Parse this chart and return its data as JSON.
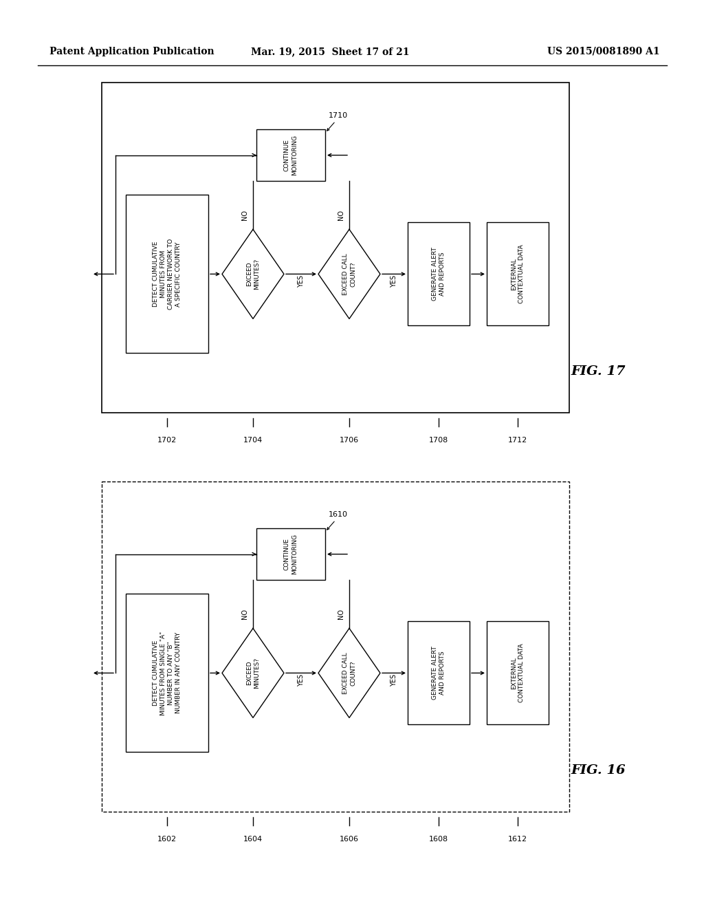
{
  "header_left": "Patent Application Publication",
  "header_mid": "Mar. 19, 2015  Sheet 17 of 21",
  "header_right": "US 2015/0081890 A1",
  "fig17": {
    "title": "FIG. 17",
    "label_1710": "1710",
    "label_1702": "1702",
    "label_1704": "1704",
    "label_1706": "1706",
    "label_1708": "1708",
    "label_1712": "1712",
    "box1_text": "DETECT CUMULATIVE\nMINUTES FROM\nCARRIER NETWORK TO\nA SPECIFIC COUNTRY",
    "diamond1_text": "EXCEED\nMINUTES?",
    "diamond2_text": "EXCEED CALL\nCOUNT?",
    "box2_text": "CONTINUE\nMONITORING",
    "box3_text": "GENERATE ALERT\nAND REPORTS",
    "box4_text": "EXTERNAL\nCONTEXTUAL DATA"
  },
  "fig16": {
    "title": "FIG. 16",
    "label_1610": "1610",
    "label_1602": "1602",
    "label_1604": "1604",
    "label_1606": "1606",
    "label_1608": "1608",
    "label_1612": "1612",
    "box1_text": "DETECT CUMULATIVE\nMINUTES FROM SINGLE \"A\"\nNUMBER TO ANY \"B\"\nNUMBER IN ANY COUNTRY",
    "diamond1_text": "EXCEED\nMINUTES?",
    "diamond2_text": "EXCEED CALL\nCOUNT?",
    "box2_text": "CONTINUE\nMONITORING",
    "box3_text": "GENERATE ALERT\nAND REPORTS",
    "box4_text": "EXTERNAL\nCONTEXTUAL DATA"
  },
  "bg_color": "#ffffff",
  "font_size_box": 6.5,
  "font_size_label": 8,
  "font_size_header": 9,
  "font_size_fig": 13
}
